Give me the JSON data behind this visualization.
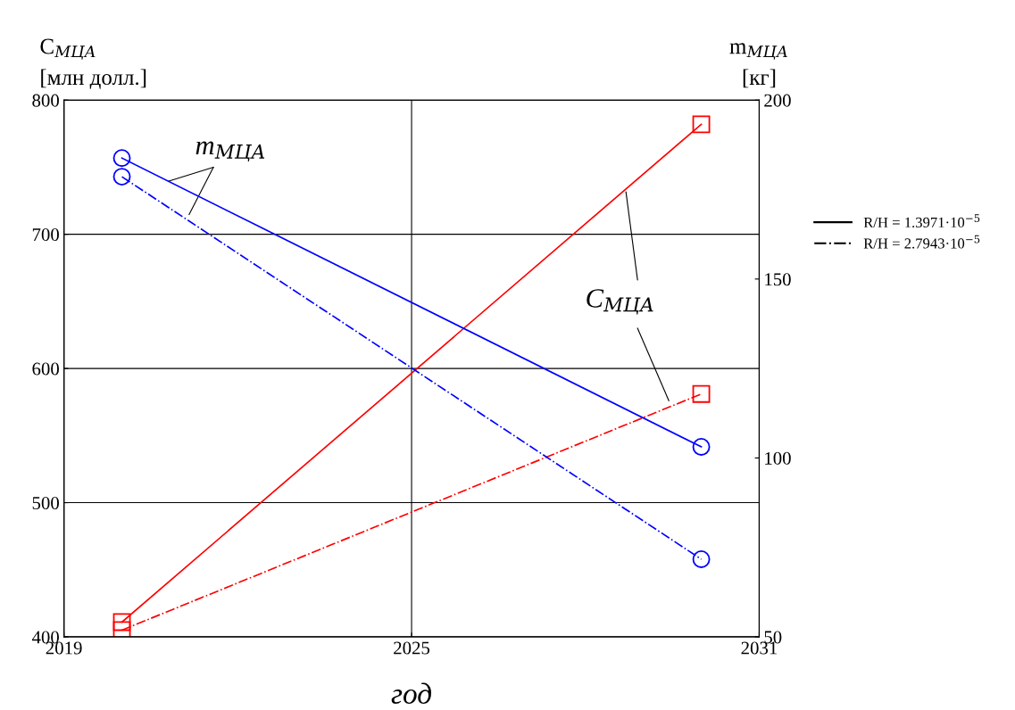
{
  "chart_data": {
    "type": "line",
    "x": [
      2020,
      2030
    ],
    "xlabel": "год",
    "ylabel": "C$_{МЦА}$\n[млн долл.]",
    "y2label": "m$_{МЦА}$\n[кг]",
    "xlim": [
      2019,
      2031
    ],
    "xticks": [
      2019,
      2025,
      2031
    ],
    "ylim": [
      400,
      800
    ],
    "yticks": [
      400,
      500,
      600,
      700,
      800
    ],
    "y2lim": [
      50,
      200
    ],
    "y2ticks": [
      50,
      100,
      150,
      200
    ],
    "grid": true,
    "legend": "right",
    "series": [
      {
        "name": "R/H = 1.3971·10$^{−5}$",
        "color": "#ff0000",
        "values": [
          411,
          782
        ],
        "line_style": "solid",
        "marker": "square"
      },
      {
        "name": "R/H = 2.7943·10$^{−5}$",
        "color": "#ff0000",
        "values": [
          405,
          581
        ],
        "line_style": "dashdot",
        "marker": "square"
      },
      {
        "color": "#0000ff",
        "values": [
          183.8,
          103.1
        ],
        "axis": "y2",
        "line_style": "solid",
        "marker": "circle"
      },
      {
        "color": "#0000ff",
        "values": [
          178.6,
          71.7
        ],
        "axis": "y2",
        "line_style": "dashdot",
        "marker": "circle"
      }
    ],
    "annotations": [
      {
        "text": "m$_{МЦА}$",
        "x": 2020.8,
        "y": 739.5
      },
      {
        "text": "C$_{МЦА}$",
        "x": 2028.7,
        "y": 731.6
      }
    ]
  }
}
